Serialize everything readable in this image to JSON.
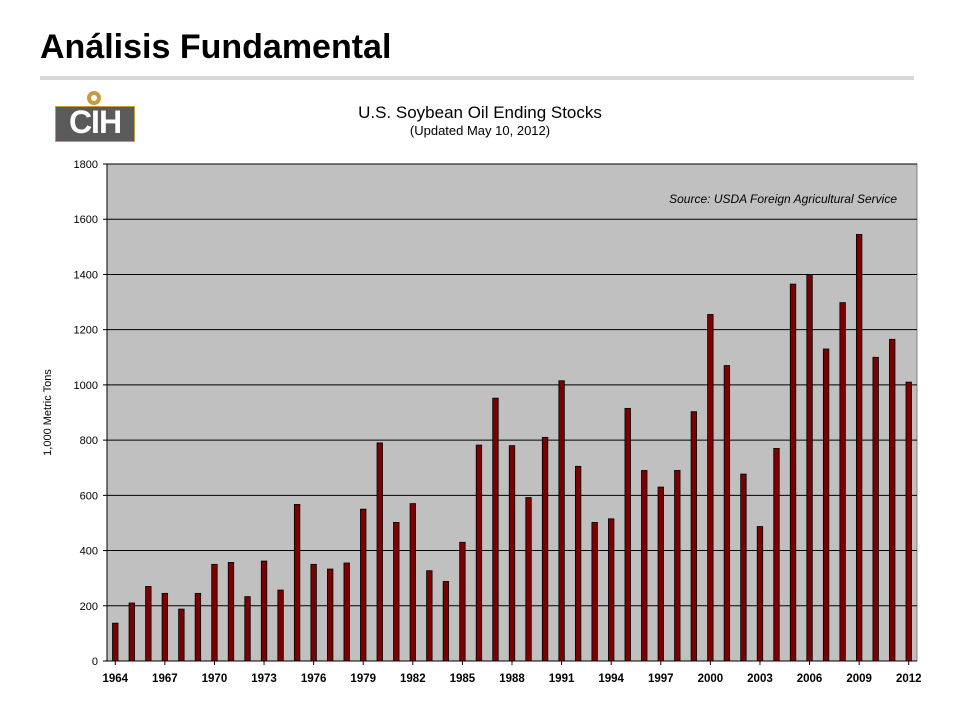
{
  "slide": {
    "title": "Análisis Fundamental"
  },
  "logo": {
    "text": "CIH"
  },
  "colors": {
    "bar": "#7b0000",
    "bar_edge": "#000000",
    "plot_bg": "#c0c0c0",
    "grid": "#000000"
  },
  "chart_data": {
    "type": "bar",
    "title": "U.S. Soybean Oil Ending Stocks",
    "subtitle": "(Updated May 10, 2012)",
    "annotation": "Source: USDA Foreign Agricultural Service",
    "ylabel": "1,000 Metric Tons",
    "xlabel": "",
    "ylim": [
      0,
      1800
    ],
    "yticks": [
      0,
      200,
      400,
      600,
      800,
      1000,
      1200,
      1400,
      1600,
      1800
    ],
    "grid": true,
    "xtick_labels": [
      "1964",
      "1967",
      "1970",
      "1973",
      "1976",
      "1979",
      "1982",
      "1985",
      "1988",
      "1991",
      "1994",
      "1997",
      "2000",
      "2003",
      "2006",
      "2009",
      "2012"
    ],
    "categories": [
      "1964",
      "1965",
      "1966",
      "1967",
      "1968",
      "1969",
      "1970",
      "1971",
      "1972",
      "1973",
      "1974",
      "1975",
      "1976",
      "1977",
      "1978",
      "1979",
      "1980",
      "1981",
      "1982",
      "1983",
      "1984",
      "1985",
      "1986",
      "1987",
      "1988",
      "1989",
      "1990",
      "1991",
      "1992",
      "1993",
      "1994",
      "1995",
      "1996",
      "1997",
      "1998",
      "1999",
      "2000",
      "2001",
      "2002",
      "2003",
      "2004",
      "2005",
      "2006",
      "2007",
      "2008",
      "2009",
      "2010",
      "2011",
      "2012"
    ],
    "values": [
      137,
      210,
      270,
      245,
      188,
      245,
      350,
      357,
      233,
      362,
      257,
      567,
      350,
      333,
      355,
      550,
      790,
      502,
      570,
      327,
      288,
      430,
      782,
      952,
      780,
      592,
      810,
      1015,
      705,
      502,
      515,
      915,
      690,
      630,
      690,
      903,
      1255,
      1070,
      677,
      487,
      770,
      1365,
      1400,
      1130,
      1298,
      1545,
      1100,
      1165,
      1010
    ]
  }
}
